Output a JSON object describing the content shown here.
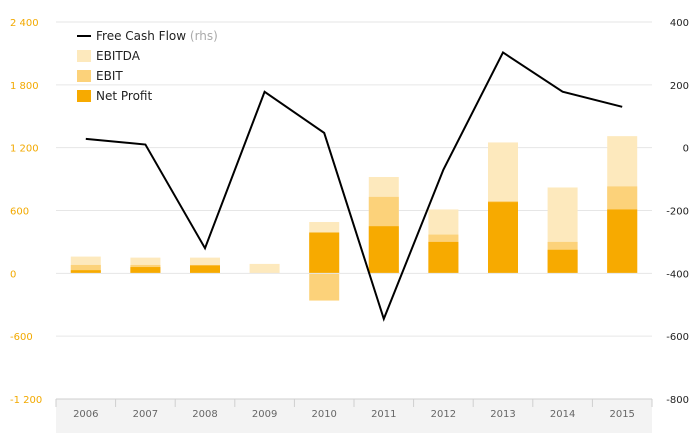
{
  "chart_data": {
    "type": "bar",
    "categories": [
      "2006",
      "2007",
      "2008",
      "2009",
      "2010",
      "2011",
      "2012",
      "2013",
      "2014",
      "2015"
    ],
    "y_left": {
      "ylim": [
        -1200,
        2400
      ],
      "ticks": [
        "-1 200",
        "-600",
        "0",
        "600",
        "1 200",
        "1 800",
        "2 400"
      ],
      "tick_values": [
        -1200,
        -600,
        0,
        600,
        1200,
        1800,
        2400
      ]
    },
    "y_right": {
      "ylim": [
        -800,
        400
      ],
      "ticks": [
        "-800",
        "-600",
        "-400",
        "-200",
        "0",
        "200",
        "400"
      ],
      "tick_values": [
        -800,
        -600,
        -400,
        -200,
        0,
        200,
        400
      ]
    },
    "series": [
      {
        "name": "EBITDA",
        "kind": "bar",
        "axis": "left",
        "color": "#fde9bd",
        "values": [
          160,
          150,
          150,
          90,
          490,
          920,
          610,
          1250,
          820,
          1310
        ]
      },
      {
        "name": "EBIT",
        "kind": "bar",
        "axis": "left",
        "color": "#fcd27a",
        "values": [
          80,
          80,
          80,
          0,
          -260,
          730,
          370,
          690,
          300,
          830
        ]
      },
      {
        "name": "Net Profit",
        "kind": "bar",
        "axis": "left",
        "color": "#f7aa00",
        "values": [
          30,
          60,
          75,
          0,
          390,
          450,
          300,
          680,
          225,
          610
        ]
      },
      {
        "name": "Free Cash Flow",
        "suffix": "(rhs)",
        "kind": "line",
        "axis": "right",
        "color": "#000000",
        "values": [
          28,
          10,
          -320,
          178,
          47,
          -545,
          -70,
          303,
          178,
          130
        ]
      }
    ],
    "legend": {
      "position": "top-left",
      "items": [
        {
          "label": "Free Cash Flow",
          "suffix": "(rhs)",
          "marker": "line",
          "color": "#000000"
        },
        {
          "label": "EBITDA",
          "suffix": "",
          "marker": "box",
          "color": "#fde9bd"
        },
        {
          "label": "EBIT",
          "suffix": "",
          "marker": "box",
          "color": "#fcd27a"
        },
        {
          "label": "Net Profit",
          "suffix": "",
          "marker": "box",
          "color": "#f7aa00"
        }
      ]
    },
    "grid": true
  }
}
